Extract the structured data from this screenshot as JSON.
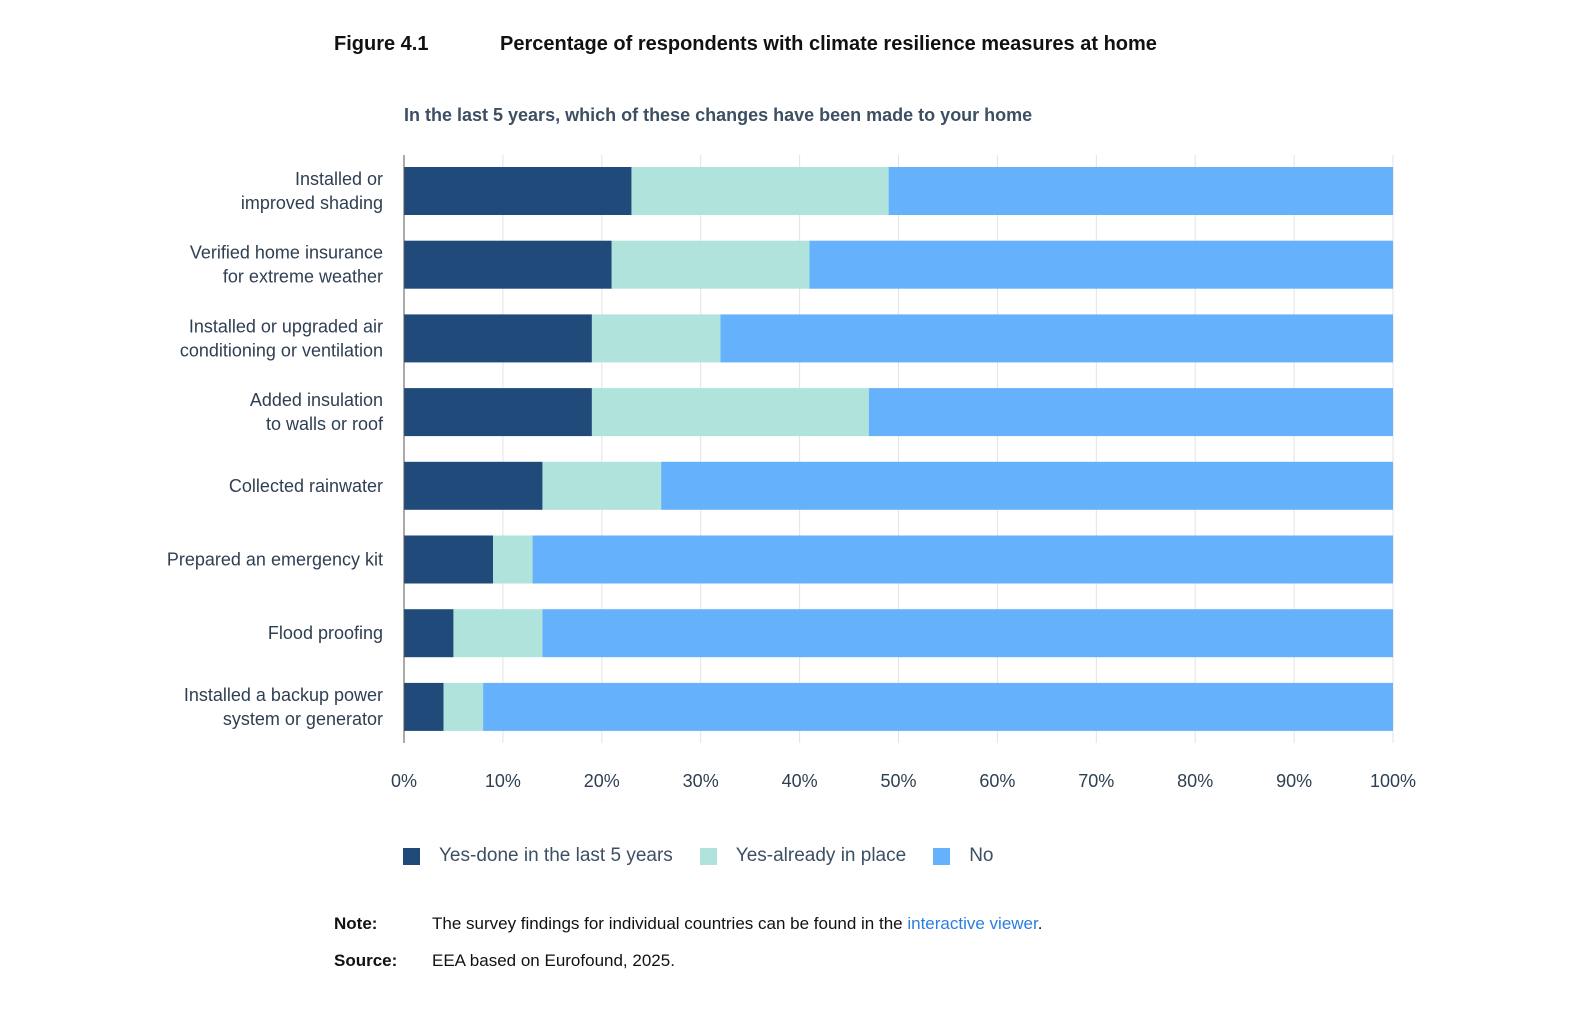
{
  "figure": {
    "number": "Figure 4.1",
    "title": "Percentage of respondents with climate resilience measures at home"
  },
  "chart_data": {
    "type": "bar",
    "orientation": "horizontal",
    "stacked": true,
    "subtitle": "In the last 5 years, which of these changes have been made to your home",
    "categories": [
      [
        "Installed or",
        "improved shading"
      ],
      [
        "Verified home insurance",
        "for extreme weather"
      ],
      [
        "Installed or upgraded air",
        "conditioning or ventilation"
      ],
      [
        "Added insulation",
        "to walls or roof"
      ],
      [
        "Collected rainwater"
      ],
      [
        "Prepared an emergency kit"
      ],
      [
        "Flood proofing"
      ],
      [
        "Installed a backup power",
        "system or generator"
      ]
    ],
    "series": [
      {
        "name": "Yes-done in the last 5 years",
        "color": "#1f4a7a",
        "values": [
          23,
          21,
          19,
          19,
          14,
          9,
          5,
          4
        ]
      },
      {
        "name": "Yes-already in place",
        "color": "#b0e3dc",
        "values": [
          26,
          20,
          13,
          28,
          12,
          4,
          9,
          4
        ]
      },
      {
        "name": "No",
        "color": "#66b1fb",
        "values": [
          51,
          59,
          68,
          53,
          74,
          87,
          86,
          92
        ]
      }
    ],
    "xlim": [
      0,
      100
    ],
    "xticks": [
      "0%",
      "10%",
      "20%",
      "30%",
      "40%",
      "50%",
      "60%",
      "70%",
      "80%",
      "90%",
      "100%"
    ],
    "grid": true,
    "legend_position": "bottom"
  },
  "note": {
    "label": "Note:",
    "text": "The survey findings for individual countries can be found in the ",
    "link": "interactive viewer",
    "end": "."
  },
  "source": {
    "label": "Source:",
    "text": "EEA based on Eurofound, 2025."
  }
}
